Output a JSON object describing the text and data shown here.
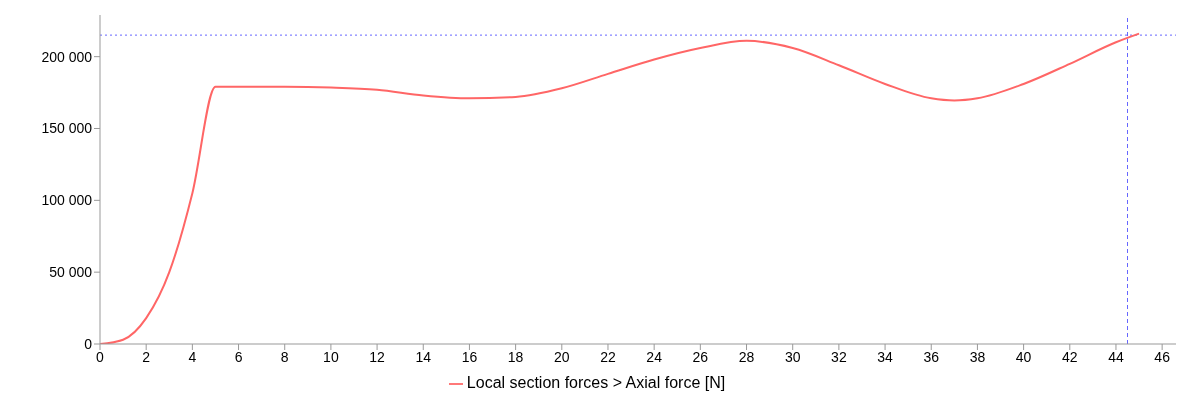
{
  "chart_data": {
    "type": "line",
    "x": [
      0,
      1,
      2,
      3,
      4,
      5,
      8,
      10,
      12,
      14,
      16,
      18,
      20,
      22,
      24,
      26,
      28,
      30,
      32,
      34,
      36,
      37,
      38,
      40,
      42,
      44,
      45
    ],
    "series": [
      {
        "name": "Local section forces > Axial force [N]",
        "color": "#ff6666",
        "values": [
          0,
          3000,
          18000,
          50000,
          105000,
          179000,
          179000,
          178500,
          177000,
          173000,
          171000,
          172000,
          178000,
          188000,
          198000,
          206000,
          211000,
          206000,
          194000,
          181000,
          171000,
          169500,
          171000,
          181000,
          195000,
          210000,
          216000
        ]
      }
    ],
    "xlim": [
      0,
      46.6
    ],
    "xticks": [
      0,
      2,
      4,
      6,
      8,
      10,
      12,
      14,
      16,
      18,
      20,
      22,
      24,
      26,
      28,
      30,
      32,
      34,
      36,
      38,
      40,
      42,
      44,
      46
    ],
    "ylim": [
      0,
      229000
    ],
    "yticks": [
      {
        "value": 0,
        "label": "0"
      },
      {
        "value": 50000,
        "label": "50 000"
      },
      {
        "value": 100000,
        "label": "100 000"
      },
      {
        "value": 150000,
        "label": "150 000"
      },
      {
        "value": 200000,
        "label": "200 000"
      }
    ],
    "ref_lines": [
      {
        "axis": "y",
        "value": 215000,
        "color": "#6666ff",
        "line_style": "dotted"
      },
      {
        "axis": "x",
        "value": 44.5,
        "color": "#6666ff",
        "line_style": "dashed"
      }
    ],
    "grid": false,
    "legend": "bottom",
    "marker": "none",
    "line_style": "solid"
  }
}
